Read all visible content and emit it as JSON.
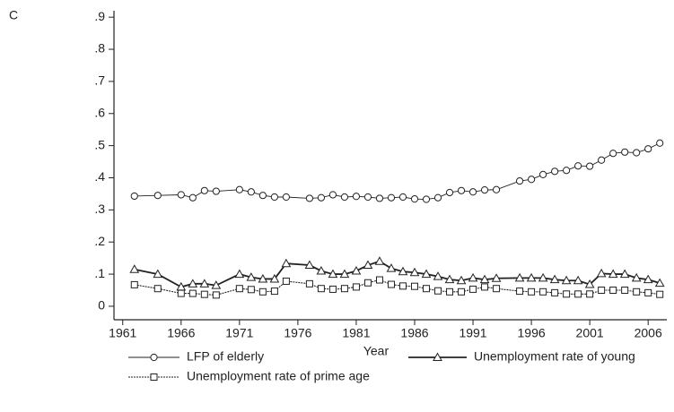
{
  "chart_data": {
    "type": "line",
    "panel_label": "C",
    "x_label": "Year",
    "x": [
      1962,
      1964,
      1966,
      1967,
      1968,
      1969,
      1971,
      1972,
      1973,
      1974,
      1975,
      1977,
      1978,
      1979,
      1980,
      1981,
      1982,
      1983,
      1984,
      1985,
      1986,
      1987,
      1988,
      1989,
      1990,
      1991,
      1992,
      1993,
      1995,
      1996,
      1997,
      1998,
      1999,
      2000,
      2001,
      2002,
      2003,
      2004,
      2005,
      2006,
      2007
    ],
    "series": [
      {
        "name": "LFP of elderly",
        "color": "#222222",
        "marker": "circle",
        "values": [
          0.343,
          0.345,
          0.347,
          0.338,
          0.36,
          0.358,
          0.363,
          0.356,
          0.345,
          0.34,
          0.34,
          0.336,
          0.338,
          0.347,
          0.34,
          0.342,
          0.34,
          0.336,
          0.338,
          0.34,
          0.334,
          0.333,
          0.338,
          0.354,
          0.36,
          0.356,
          0.362,
          0.363,
          0.39,
          0.395,
          0.41,
          0.42,
          0.423,
          0.437,
          0.436,
          0.455,
          0.476,
          0.48,
          0.478,
          0.49,
          0.508
        ]
      },
      {
        "name": "Unemployment rate of young",
        "color": "#222222",
        "marker": "triangle",
        "values": [
          0.115,
          0.1,
          0.06,
          0.07,
          0.07,
          0.065,
          0.1,
          0.09,
          0.085,
          0.085,
          0.133,
          0.128,
          0.11,
          0.1,
          0.1,
          0.11,
          0.128,
          0.14,
          0.118,
          0.108,
          0.105,
          0.1,
          0.093,
          0.083,
          0.08,
          0.088,
          0.083,
          0.087,
          0.088,
          0.088,
          0.088,
          0.083,
          0.08,
          0.08,
          0.068,
          0.102,
          0.1,
          0.1,
          0.088,
          0.083,
          0.072
        ]
      },
      {
        "name": "Unemployment rate of prime age",
        "color": "#222222",
        "marker": "square",
        "values": [
          0.067,
          0.055,
          0.04,
          0.04,
          0.037,
          0.035,
          0.055,
          0.052,
          0.045,
          0.047,
          0.078,
          0.07,
          0.055,
          0.053,
          0.055,
          0.06,
          0.073,
          0.082,
          0.068,
          0.063,
          0.062,
          0.055,
          0.048,
          0.045,
          0.045,
          0.053,
          0.06,
          0.055,
          0.047,
          0.045,
          0.045,
          0.042,
          0.038,
          0.038,
          0.038,
          0.05,
          0.05,
          0.05,
          0.045,
          0.042,
          0.037
        ]
      }
    ],
    "xlim": [
      1960.25,
      2007.6
    ],
    "xticks": [
      1961,
      1966,
      1971,
      1976,
      1981,
      1986,
      1991,
      1996,
      2001,
      2006
    ],
    "ylim": [
      -0.042,
      0.92
    ],
    "yticks": [
      0,
      {
        "value": 0.1,
        "label": ".1"
      },
      {
        "value": 0.2,
        "label": ".2"
      },
      {
        "value": 0.3,
        "label": ".3"
      },
      {
        "value": 0.4,
        "label": ".4"
      },
      {
        "value": 0.5,
        "label": ".5"
      },
      {
        "value": 0.6,
        "label": ".6"
      },
      {
        "value": 0.7,
        "label": ".7"
      },
      {
        "value": 0.8,
        "label": ".8"
      },
      {
        "value": 0.9,
        "label": ".9"
      }
    ]
  }
}
